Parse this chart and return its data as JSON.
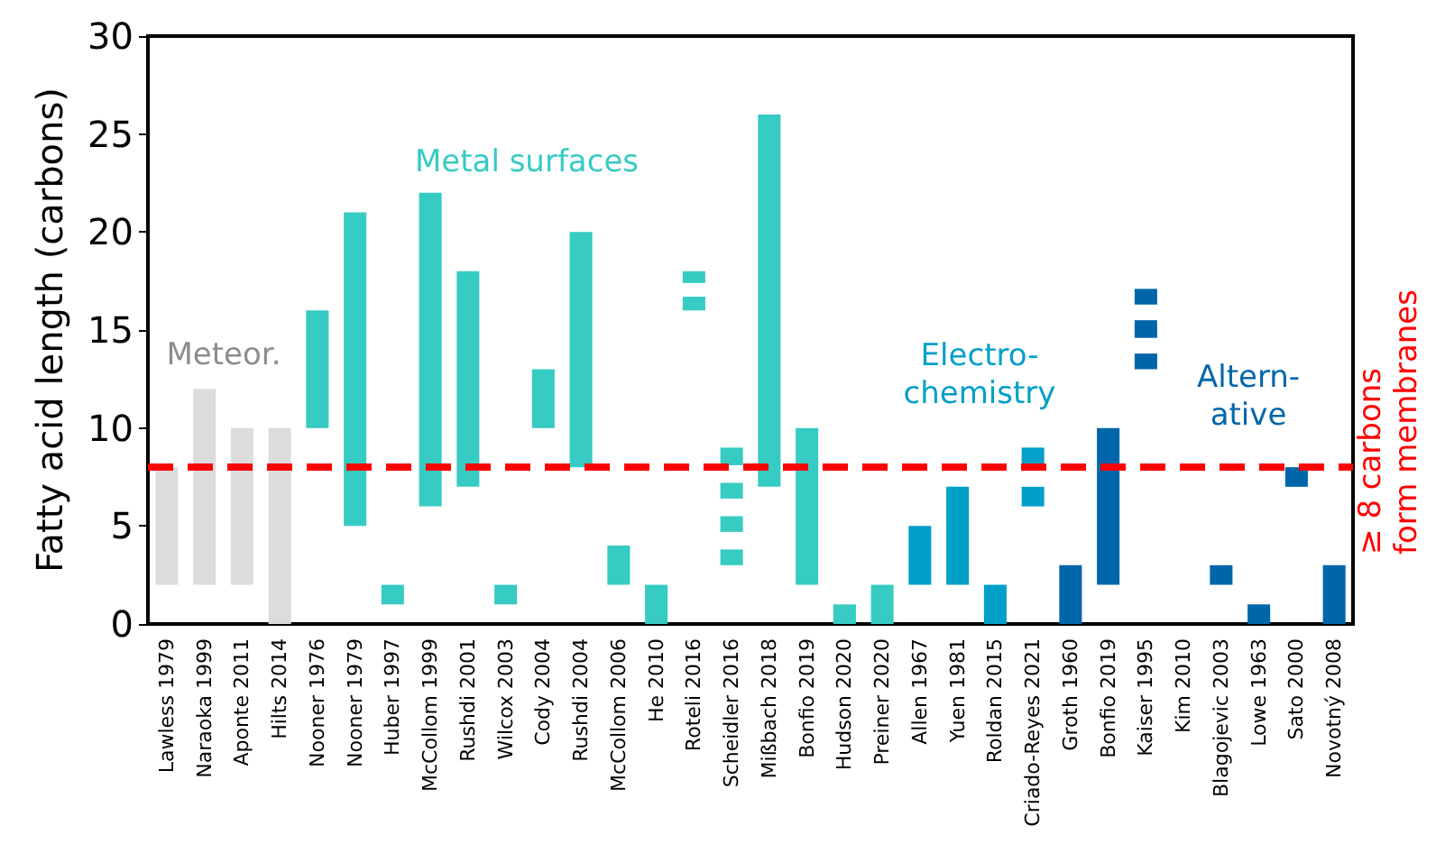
{
  "chart_data": {
    "type": "bar",
    "ylabel": "Fatty acid length (carbons)",
    "categories": [
      "Lawless 1979",
      "Naraoka 1999",
      "Aponte 2011",
      "Hilts 2014",
      "Nooner 1976",
      "Nooner 1979",
      "Huber 1997",
      "McCollom 1999",
      "Rushdi 2001",
      "Wilcox 2003",
      "Cody 2004",
      "Rushdi 2004",
      "McCollom 2006",
      "He 2010",
      "Roteli 2016",
      "Scheidler 2016",
      "Mißbach 2018",
      "Bonfio 2019",
      "Hudson 2020",
      "Preiner 2020",
      "Allen 1967",
      "Yuen 1981",
      "Roldan 2015",
      "Criado-Reyes 2021",
      "Groth 1960",
      "Bonfio 2019",
      "Kaiser 1995",
      "Kim 2010",
      "Blagojevic 2003",
      "Lowe 1963",
      "Sato 2000",
      "Novotný 2008"
    ],
    "series": [
      {
        "colors": [
          "#dcdcdc",
          "#dcdcdc",
          "#dcdcdc",
          "#dcdcdc",
          "#36cbc3",
          "#36cbc3",
          "#36cbc3",
          "#36cbc3",
          "#36cbc3",
          "#36cbc3",
          "#36cbc3",
          "#36cbc3",
          "#36cbc3",
          "#36cbc3",
          "#36cbc3",
          "#36cbc3",
          "#36cbc3",
          "#36cbc3",
          "#36cbc3",
          "#36cbc3",
          "#00a0c8",
          "#00a0c8",
          "#00a0c8",
          "#00a0c8",
          "#0066aa",
          "#0066aa",
          "#0066aa",
          null,
          "#0066aa",
          "#0066aa",
          "#0066aa",
          "#0066aa"
        ],
        "base": [
          2,
          2,
          2,
          0,
          10,
          5,
          1,
          6,
          7,
          1,
          10,
          8,
          2,
          0,
          17.4,
          8.1,
          7,
          2,
          0,
          0,
          2,
          2,
          0,
          8,
          0,
          2,
          16.3,
          null,
          2,
          0,
          7,
          0
        ],
        "values": [
          6,
          10,
          8,
          10,
          6,
          16,
          1,
          16,
          11,
          1,
          3,
          12,
          2,
          2,
          0.6,
          0.9,
          19,
          8,
          1,
          2,
          3,
          5,
          2,
          1,
          3,
          8,
          0.8,
          null,
          1,
          1,
          1,
          3
        ]
      },
      {
        "colors": [
          null,
          null,
          null,
          null,
          null,
          null,
          null,
          null,
          null,
          null,
          null,
          null,
          null,
          null,
          "#36cbc3",
          "#36cbc3",
          null,
          null,
          null,
          null,
          null,
          null,
          null,
          "#00a0c8",
          null,
          null,
          "#0066aa",
          null,
          null,
          null,
          null,
          null
        ],
        "base": [
          null,
          null,
          null,
          null,
          null,
          null,
          null,
          null,
          null,
          null,
          null,
          null,
          null,
          null,
          16,
          6.4,
          null,
          null,
          null,
          null,
          null,
          null,
          null,
          6,
          null,
          null,
          14.6,
          null,
          null,
          null,
          null,
          null
        ],
        "values": [
          null,
          null,
          null,
          null,
          null,
          null,
          null,
          null,
          null,
          null,
          null,
          null,
          null,
          null,
          0.7,
          0.8,
          null,
          null,
          null,
          null,
          null,
          null,
          null,
          1,
          null,
          null,
          0.9,
          null,
          null,
          null,
          null,
          null
        ]
      },
      {
        "colors": [
          null,
          null,
          null,
          null,
          null,
          null,
          null,
          null,
          null,
          null,
          null,
          null,
          null,
          null,
          null,
          "#36cbc3",
          null,
          null,
          null,
          null,
          null,
          null,
          null,
          null,
          null,
          null,
          "#0066aa",
          null,
          null,
          null,
          null,
          null
        ],
        "base": [
          null,
          null,
          null,
          null,
          null,
          null,
          null,
          null,
          null,
          null,
          null,
          null,
          null,
          null,
          null,
          4.7,
          null,
          null,
          null,
          null,
          null,
          null,
          null,
          null,
          null,
          null,
          13,
          null,
          null,
          null,
          null,
          null
        ],
        "values": [
          null,
          null,
          null,
          null,
          null,
          null,
          null,
          null,
          null,
          null,
          null,
          null,
          null,
          null,
          null,
          0.8,
          null,
          null,
          null,
          null,
          null,
          null,
          null,
          null,
          null,
          null,
          0.8,
          null,
          null,
          null,
          null,
          null
        ]
      },
      {
        "colors": [
          null,
          null,
          null,
          null,
          null,
          null,
          null,
          null,
          null,
          null,
          null,
          null,
          null,
          null,
          null,
          "#36cbc3",
          null,
          null,
          null,
          null,
          null,
          null,
          null,
          null,
          null,
          null,
          null,
          null,
          null,
          null,
          null,
          null
        ],
        "base": [
          null,
          null,
          null,
          null,
          null,
          null,
          null,
          null,
          null,
          null,
          null,
          null,
          null,
          null,
          null,
          3,
          null,
          null,
          null,
          null,
          null,
          null,
          null,
          null,
          null,
          null,
          null,
          null,
          null,
          null,
          null,
          null
        ],
        "values": [
          null,
          null,
          null,
          null,
          null,
          null,
          null,
          null,
          null,
          null,
          null,
          null,
          null,
          null,
          null,
          0.8,
          null,
          null,
          null,
          null,
          null,
          null,
          null,
          null,
          null,
          null,
          null,
          null,
          null,
          null,
          null,
          null
        ]
      }
    ],
    "ylim": [
      0,
      30
    ],
    "yticks": [
      0,
      5,
      10,
      15,
      20,
      25,
      30
    ],
    "ref_lines": [
      {
        "axis": "y",
        "value": 8,
        "label": "≥ 8 carbons\nform membranes",
        "color": "#ff0000",
        "line_style": "dashed"
      }
    ],
    "annotations": [
      "Meteor.",
      "Metal surfaces",
      "Electro-\nchemistry",
      "Altern-\native"
    ],
    "grid": false
  }
}
